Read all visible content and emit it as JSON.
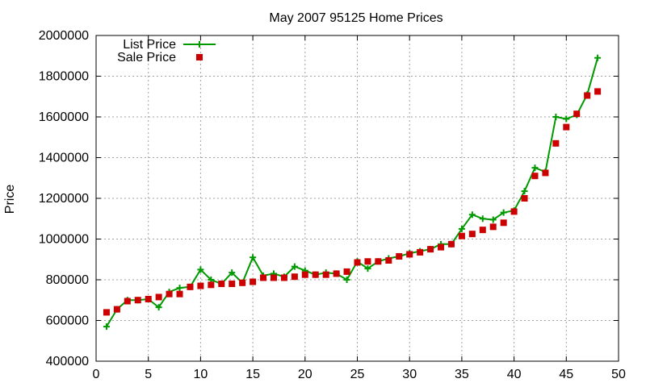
{
  "chart_data": {
    "type": "line",
    "title": "May 2007 95125 Home Prices",
    "xlabel": "",
    "ylabel": "Price",
    "xlim": [
      0,
      50
    ],
    "ylim": [
      400000,
      2000000
    ],
    "xticks": [
      0,
      5,
      10,
      15,
      20,
      25,
      30,
      35,
      40,
      45,
      50
    ],
    "yticks": [
      400000,
      600000,
      800000,
      1000000,
      1200000,
      1400000,
      1600000,
      1800000,
      2000000
    ],
    "grid": true,
    "legend_position": "top-left",
    "series": [
      {
        "name": "List Price",
        "style": "line-plus",
        "color": "#009900",
        "x": [
          1,
          2,
          3,
          4,
          5,
          6,
          7,
          8,
          9,
          10,
          11,
          12,
          13,
          14,
          15,
          16,
          17,
          18,
          19,
          20,
          21,
          22,
          23,
          24,
          25,
          26,
          27,
          28,
          29,
          30,
          31,
          32,
          33,
          34,
          35,
          36,
          37,
          38,
          39,
          40,
          41,
          42,
          43,
          44,
          45,
          46,
          47,
          48
        ],
        "values": [
          570000,
          655000,
          700000,
          700000,
          705000,
          665000,
          740000,
          760000,
          765000,
          850000,
          800000,
          780000,
          835000,
          785000,
          910000,
          820000,
          830000,
          815000,
          865000,
          845000,
          825000,
          835000,
          830000,
          800000,
          890000,
          855000,
          890000,
          905000,
          915000,
          930000,
          940000,
          950000,
          975000,
          975000,
          1050000,
          1120000,
          1100000,
          1095000,
          1130000,
          1140000,
          1235000,
          1350000,
          1330000,
          1600000,
          1590000,
          1610000,
          1710000,
          1890000
        ]
      },
      {
        "name": "Sale Price",
        "style": "square-markers",
        "color": "#cc0000",
        "x": [
          1,
          2,
          3,
          4,
          5,
          6,
          7,
          8,
          9,
          10,
          11,
          12,
          13,
          14,
          15,
          16,
          17,
          18,
          19,
          20,
          21,
          22,
          23,
          24,
          25,
          26,
          27,
          28,
          29,
          30,
          31,
          32,
          33,
          34,
          35,
          36,
          37,
          38,
          39,
          40,
          41,
          42,
          43,
          44,
          45,
          46,
          47,
          48
        ],
        "values": [
          640000,
          655000,
          695000,
          700000,
          705000,
          715000,
          730000,
          730000,
          765000,
          770000,
          775000,
          780000,
          780000,
          785000,
          790000,
          810000,
          810000,
          810000,
          815000,
          825000,
          825000,
          825000,
          830000,
          840000,
          885000,
          890000,
          890000,
          895000,
          915000,
          925000,
          935000,
          950000,
          960000,
          975000,
          1015000,
          1025000,
          1045000,
          1060000,
          1080000,
          1135000,
          1200000,
          1310000,
          1325000,
          1470000,
          1550000,
          1615000,
          1705000,
          1725000
        ]
      }
    ]
  }
}
